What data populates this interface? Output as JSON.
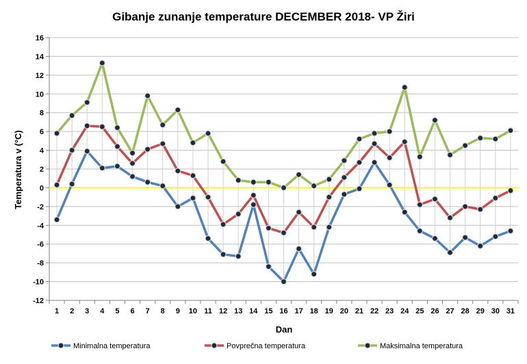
{
  "chart_data": {
    "type": "line",
    "title": "Gibanje zunanje temperature DECEMBER 2018- VP Žiri",
    "xlabel": "Dan",
    "ylabel": "Temperatura v (°C)",
    "ylim": [
      -12,
      16
    ],
    "ytick_step": 2,
    "categories": [
      "1",
      "2",
      "3",
      "4",
      "5",
      "6",
      "7",
      "8",
      "9",
      "10",
      "11",
      "12",
      "13",
      "14",
      "15",
      "16",
      "17",
      "18",
      "19",
      "20",
      "21",
      "22",
      "23",
      "24",
      "25",
      "26",
      "27",
      "28",
      "29",
      "30",
      "31"
    ],
    "reference_line": {
      "value": 0,
      "color": "#FFFF00"
    },
    "series": [
      {
        "name": "Minimalna temperatura",
        "color": "#4F81BD",
        "values": [
          -3.4,
          0.4,
          3.9,
          2.1,
          2.3,
          1.2,
          0.6,
          0.2,
          -2.0,
          -1.1,
          -5.4,
          -7.1,
          -7.3,
          -1.8,
          -8.4,
          -10.0,
          -6.5,
          -9.2,
          -4.2,
          -0.7,
          -0.1,
          2.7,
          0.3,
          -2.6,
          -4.6,
          -5.4,
          -6.9,
          -5.3,
          -6.2,
          -5.2,
          -4.6
        ]
      },
      {
        "name": "Povprečna temperatura",
        "color": "#C0504D",
        "values": [
          0.3,
          4.0,
          6.6,
          6.5,
          4.4,
          2.6,
          4.1,
          4.7,
          1.8,
          1.3,
          -1.0,
          -3.9,
          -2.8,
          -0.8,
          -4.3,
          -4.8,
          -2.6,
          -4.2,
          -1.0,
          1.1,
          2.7,
          4.7,
          3.2,
          4.9,
          -1.8,
          -1.2,
          -3.2,
          -2.0,
          -2.3,
          -1.1,
          -0.3
        ]
      },
      {
        "name": "Maksimalna temperatura",
        "color": "#9BBB59",
        "values": [
          5.8,
          7.7,
          9.1,
          13.3,
          6.4,
          3.7,
          9.8,
          6.7,
          8.3,
          4.8,
          5.8,
          2.8,
          0.8,
          0.6,
          0.6,
          0.0,
          1.4,
          0.2,
          0.9,
          2.9,
          5.2,
          5.8,
          6.0,
          10.7,
          3.3,
          7.2,
          3.5,
          4.5,
          5.3,
          5.2,
          6.1
        ]
      }
    ]
  }
}
